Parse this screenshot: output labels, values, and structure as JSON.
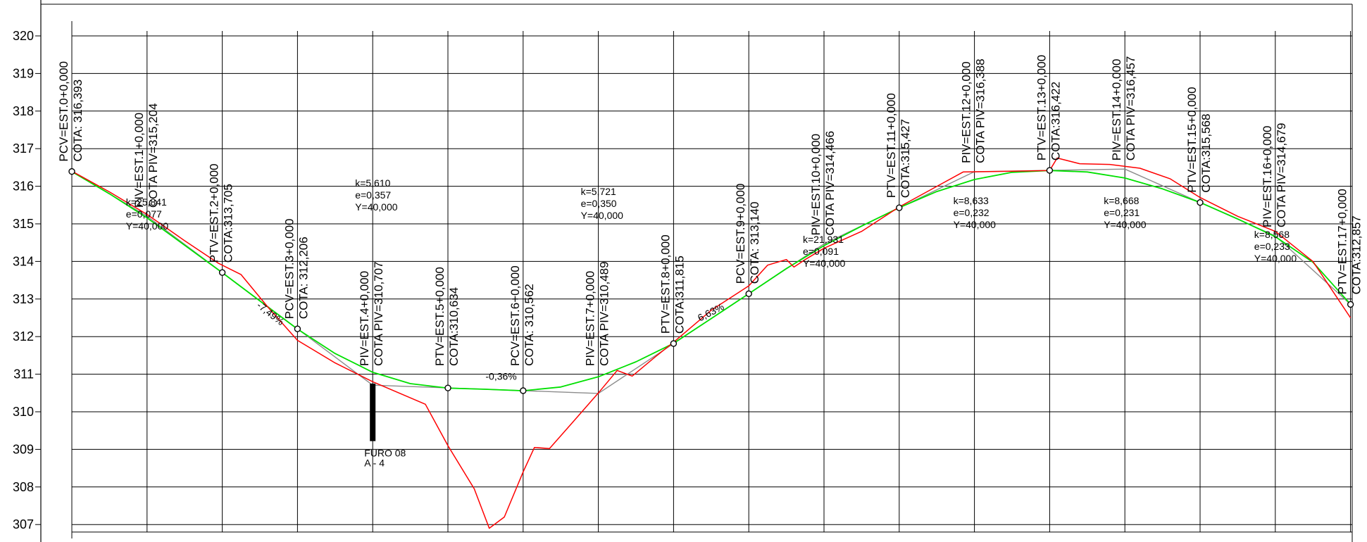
{
  "y_axis": {
    "ticks": [
      320,
      319,
      318,
      317,
      316,
      315,
      314,
      313,
      312,
      311,
      310,
      309,
      308,
      307
    ],
    "min": 306.8,
    "max": 320
  },
  "stations": [
    {
      "id": 0,
      "line1": "PCV=EST.0+0,000",
      "line2": "COTA: 316,393",
      "elev": 316.393,
      "marker": "circle"
    },
    {
      "id": 1,
      "line1": "PIV=EST.1+0,000",
      "line2": "COTA PIV=315,204",
      "elev": null
    },
    {
      "id": 2,
      "line1": "PTV=EST.2+0,000",
      "line2": "COTA:313,705",
      "elev": 313.705,
      "marker": "circle"
    },
    {
      "id": 3,
      "line1": "PCV=EST.3+0,000",
      "line2": "COTA: 312,206",
      "elev": 312.206,
      "marker": "circle"
    },
    {
      "id": 4,
      "line1": "PIV=EST.4+0,000",
      "line2": "COTA PIV=310,707",
      "elev": null
    },
    {
      "id": 5,
      "line1": "PTV=EST.5+0,000",
      "line2": "COTA:310,634",
      "elev": 310.634,
      "marker": "circle"
    },
    {
      "id": 6,
      "line1": "PCV=EST.6+0,000",
      "line2": "COTA: 310,562",
      "elev": 310.562,
      "marker": "circle"
    },
    {
      "id": 7,
      "line1": "PIV=EST.7+0,000",
      "line2": "COTA PIV=310,489",
      "elev": null
    },
    {
      "id": 8,
      "line1": "PTV=EST.8+0,000",
      "line2": "COTA:311,815",
      "elev": 311.815,
      "marker": "circle"
    },
    {
      "id": 9,
      "line1": "PCV=EST.9+0,000",
      "line2": "COTA: 313,140",
      "elev": 313.14,
      "marker": "circle"
    },
    {
      "id": 10,
      "line1": "PIV=EST.10+0,000",
      "line2": "COTA PIV=314,466",
      "elev": null
    },
    {
      "id": 11,
      "line1": "PTV=EST.11+0,000",
      "line2": "COTA:315,427",
      "elev": 315.427,
      "marker": "circle"
    },
    {
      "id": 12,
      "line1": "PIV=EST.12+0,000",
      "line2": "COTA PIV=316,388",
      "elev": null
    },
    {
      "id": 13,
      "line1": "PTV=EST.13+0,000",
      "line2": "COTA:316,422",
      "elev": 316.422,
      "marker": "circle"
    },
    {
      "id": 14,
      "line1": "PIV=EST.14+0,000",
      "line2": "COTA PIV=316,457",
      "elev": null
    },
    {
      "id": 15,
      "line1": "PTV=EST.15+0,000",
      "line2": "COTA:315,568",
      "elev": 315.568,
      "marker": "circle"
    },
    {
      "id": 16,
      "line1": "PIV=EST.16+0,000",
      "line2": "COTA PIV=314,679",
      "elev": null
    },
    {
      "id": 17,
      "line1": "PTV=EST.17+0,000",
      "line2": "COTA:312,857",
      "elev": 312.857,
      "marker": "circle"
    }
  ],
  "curves": [
    {
      "station": 1,
      "k": "k=25,841",
      "e": "e=0,077",
      "y": "Y=40,000"
    },
    {
      "station": 4,
      "k": "k=5,610",
      "e": "e=0,357",
      "y": "Y=40,000"
    },
    {
      "station": 7,
      "k": "k=5,721",
      "e": "e=0,350",
      "y": "Y=40,000"
    },
    {
      "station": 10,
      "k": "k=21,931",
      "e": "e=0,091",
      "y": "Y=40,000"
    },
    {
      "station": 12,
      "k": "k=8,633",
      "e": "e=0,232",
      "y": "Y=40,000"
    },
    {
      "station": 14,
      "k": "k=8,668",
      "e": "e=0,231",
      "y": "Y=40,000"
    },
    {
      "station": 16,
      "k": "k=8,568",
      "e": "e=0,233",
      "y": "Y=40,000"
    }
  ],
  "grades": [
    {
      "text": "-7,49%",
      "station": 2.45,
      "elev": 312.8
    },
    {
      "text": "-0,36%",
      "station": 5.5,
      "elev": 310.85
    },
    {
      "text": "6,63%",
      "station": 8.35,
      "elev": 312.4
    }
  ],
  "tangent_points": [
    [
      0,
      316.393
    ],
    [
      1,
      315.204
    ],
    [
      2,
      313.705
    ],
    [
      3,
      312.206
    ],
    [
      4,
      310.707
    ],
    [
      5,
      310.634
    ],
    [
      6,
      310.562
    ],
    [
      7,
      310.489
    ],
    [
      8,
      311.815
    ],
    [
      9,
      313.14
    ],
    [
      10,
      314.466
    ],
    [
      11,
      315.427
    ],
    [
      12,
      316.388
    ],
    [
      13,
      316.422
    ],
    [
      14,
      316.457
    ],
    [
      15,
      315.568
    ],
    [
      16,
      314.679
    ],
    [
      17,
      312.857
    ]
  ],
  "design_profile": [
    [
      0,
      316.39
    ],
    [
      0.5,
      315.8
    ],
    [
      1.0,
      315.16
    ],
    [
      1.5,
      314.43
    ],
    [
      2.0,
      313.7
    ],
    [
      2.5,
      312.95
    ],
    [
      3.0,
      312.2
    ],
    [
      3.5,
      311.55
    ],
    [
      4.0,
      311.05
    ],
    [
      4.5,
      310.75
    ],
    [
      5.0,
      310.63
    ],
    [
      5.5,
      310.6
    ],
    [
      6.0,
      310.56
    ],
    [
      6.5,
      310.66
    ],
    [
      7.0,
      310.93
    ],
    [
      7.5,
      311.33
    ],
    [
      8.0,
      311.82
    ],
    [
      8.5,
      312.48
    ],
    [
      9.0,
      313.14
    ],
    [
      9.5,
      313.81
    ],
    [
      10.0,
      314.42
    ],
    [
      10.5,
      314.94
    ],
    [
      11.0,
      315.43
    ],
    [
      11.5,
      315.86
    ],
    [
      12.0,
      316.18
    ],
    [
      12.5,
      316.37
    ],
    [
      13.0,
      316.42
    ],
    [
      13.5,
      316.38
    ],
    [
      14.0,
      316.22
    ],
    [
      14.5,
      315.93
    ],
    [
      15.0,
      315.57
    ],
    [
      15.5,
      315.13
    ],
    [
      16.0,
      314.66
    ],
    [
      16.5,
      313.98
    ],
    [
      17.0,
      312.86
    ]
  ],
  "terrain_profile": [
    [
      0,
      316.4
    ],
    [
      0.5,
      315.85
    ],
    [
      1.0,
      315.25
    ],
    [
      1.5,
      314.55
    ],
    [
      1.95,
      313.95
    ],
    [
      2.25,
      313.65
    ],
    [
      2.6,
      312.8
    ],
    [
      3.0,
      311.9
    ],
    [
      3.5,
      311.3
    ],
    [
      4.0,
      310.8
    ],
    [
      4.7,
      310.2
    ],
    [
      5.0,
      309.1
    ],
    [
      5.35,
      307.95
    ],
    [
      5.55,
      306.9
    ],
    [
      5.75,
      307.2
    ],
    [
      6.0,
      308.4
    ],
    [
      6.15,
      309.05
    ],
    [
      6.35,
      309.02
    ],
    [
      6.65,
      309.7
    ],
    [
      7.0,
      310.5
    ],
    [
      7.25,
      311.1
    ],
    [
      7.45,
      310.95
    ],
    [
      7.75,
      311.45
    ],
    [
      8.0,
      311.85
    ],
    [
      8.5,
      312.7
    ],
    [
      9.0,
      313.35
    ],
    [
      9.25,
      313.9
    ],
    [
      9.5,
      314.05
    ],
    [
      9.6,
      313.85
    ],
    [
      9.75,
      314.05
    ],
    [
      10.0,
      314.35
    ],
    [
      10.5,
      314.8
    ],
    [
      11.0,
      315.45
    ],
    [
      11.55,
      316.05
    ],
    [
      11.85,
      316.38
    ],
    [
      12.5,
      316.4
    ],
    [
      13.0,
      316.42
    ],
    [
      13.1,
      316.75
    ],
    [
      13.4,
      316.6
    ],
    [
      13.8,
      316.58
    ],
    [
      14.2,
      316.48
    ],
    [
      14.6,
      316.2
    ],
    [
      15.0,
      315.7
    ],
    [
      15.5,
      315.2
    ],
    [
      16.0,
      314.8
    ],
    [
      16.5,
      314.0
    ],
    [
      17.0,
      312.5
    ]
  ],
  "borehole": {
    "station": 4,
    "top": 310.75,
    "bottom": 309.22,
    "name": "FURO 08",
    "class": "A - 4"
  },
  "colors": {
    "grid": "#000000",
    "terrain": "#ff0000",
    "design": "#00e000",
    "tangent": "#8c8c8c",
    "borehole": "#000000"
  }
}
